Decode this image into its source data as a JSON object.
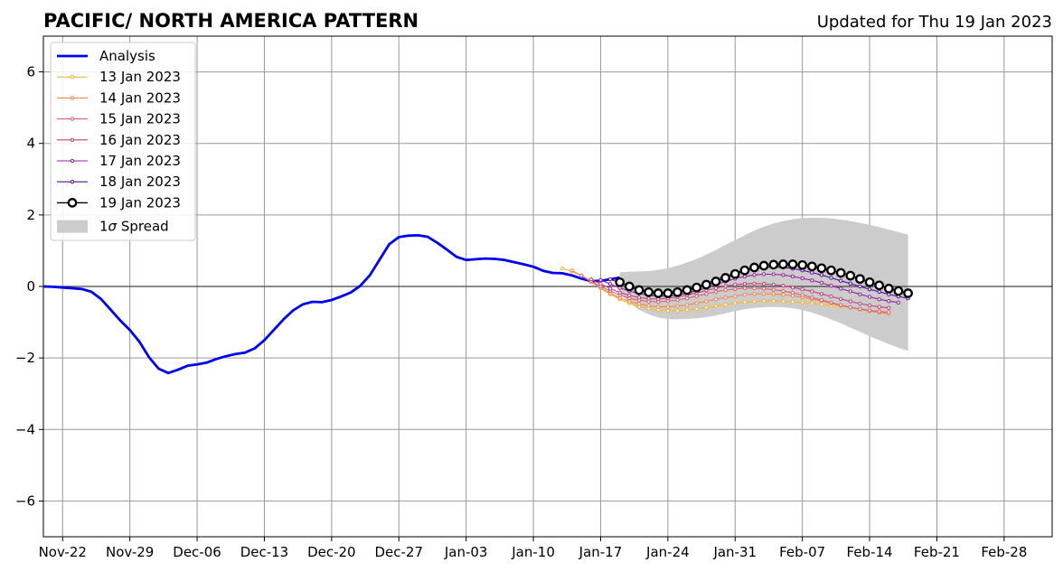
{
  "chart_data": {
    "type": "line",
    "title": "PACIFIC/ NORTH AMERICA PATTERN",
    "subtitle": "Updated for Thu 19 Jan 2023",
    "xlabel": "",
    "ylabel": "",
    "x_range": [
      "2022-11-20",
      "2023-03-05"
    ],
    "ylim": [
      -7,
      7
    ],
    "x_ticks": [
      {
        "date": "2022-11-22",
        "label": "Nov-22"
      },
      {
        "date": "2022-11-29",
        "label": "Nov-29"
      },
      {
        "date": "2022-12-06",
        "label": "Dec-06"
      },
      {
        "date": "2022-12-13",
        "label": "Dec-13"
      },
      {
        "date": "2022-12-20",
        "label": "Dec-20"
      },
      {
        "date": "2022-12-27",
        "label": "Dec-27"
      },
      {
        "date": "2023-01-03",
        "label": "Jan-03"
      },
      {
        "date": "2023-01-10",
        "label": "Jan-10"
      },
      {
        "date": "2023-01-17",
        "label": "Jan-17"
      },
      {
        "date": "2023-01-24",
        "label": "Jan-24"
      },
      {
        "date": "2023-01-31",
        "label": "Jan-31"
      },
      {
        "date": "2023-02-07",
        "label": "Feb-07"
      },
      {
        "date": "2023-02-14",
        "label": "Feb-14"
      },
      {
        "date": "2023-02-21",
        "label": "Feb-21"
      },
      {
        "date": "2023-02-28",
        "label": "Feb-28"
      }
    ],
    "y_ticks": [
      {
        "value": -6,
        "label": "−6"
      },
      {
        "value": -4,
        "label": "−4"
      },
      {
        "value": -2,
        "label": "−2"
      },
      {
        "value": 0,
        "label": "0"
      },
      {
        "value": 2,
        "label": "2"
      },
      {
        "value": 4,
        "label": "4"
      },
      {
        "value": 6,
        "label": "6"
      }
    ],
    "grid": true,
    "legend_position": "top-left",
    "colors": {
      "analysis": "#0000ee",
      "spread": "#cccccc",
      "grid": "#999999",
      "zero_line": "#444444"
    },
    "analysis": {
      "name": "Analysis",
      "start_date": "2022-11-20",
      "values": [
        0.0,
        -0.01,
        -0.03,
        -0.05,
        -0.07,
        -0.15,
        -0.35,
        -0.65,
        -0.95,
        -1.22,
        -1.55,
        -1.98,
        -2.3,
        -2.42,
        -2.33,
        -2.22,
        -2.18,
        -2.13,
        -2.03,
        -1.95,
        -1.89,
        -1.85,
        -1.73,
        -1.5,
        -1.21,
        -0.92,
        -0.67,
        -0.5,
        -0.43,
        -0.44,
        -0.38,
        -0.28,
        -0.17,
        0.02,
        0.32,
        0.75,
        1.18,
        1.38,
        1.42,
        1.43,
        1.39,
        1.22,
        1.03,
        0.83,
        0.74,
        0.76,
        0.78,
        0.77,
        0.74,
        0.68,
        0.62,
        0.55,
        0.44,
        0.38,
        0.37,
        0.31,
        0.22,
        0.15,
        0.16,
        0.2,
        0.25
      ]
    },
    "forecasts": [
      {
        "name": "13 Jan 2023",
        "color": "#f7b733",
        "start_date": "2023-01-13",
        "values": [
          0.5,
          0.42,
          0.3,
          0.15,
          -0.05,
          -0.22,
          -0.36,
          -0.47,
          -0.56,
          -0.62,
          -0.66,
          -0.68,
          -0.68,
          -0.66,
          -0.63,
          -0.59,
          -0.55,
          -0.51,
          -0.47,
          -0.44,
          -0.42,
          -0.41,
          -0.41,
          -0.42,
          -0.43,
          -0.45,
          -0.47,
          -0.5,
          -0.53,
          -0.56,
          -0.59,
          -0.63,
          -0.67,
          -0.71,
          -0.76
        ]
      },
      {
        "name": "14 Jan 2023",
        "color": "#f08a4b",
        "start_date": "2023-01-14",
        "values": [
          0.45,
          0.3,
          0.13,
          -0.04,
          -0.19,
          -0.32,
          -0.42,
          -0.49,
          -0.54,
          -0.57,
          -0.57,
          -0.55,
          -0.52,
          -0.47,
          -0.42,
          -0.36,
          -0.31,
          -0.27,
          -0.23,
          -0.21,
          -0.2,
          -0.21,
          -0.23,
          -0.26,
          -0.3,
          -0.35,
          -0.41,
          -0.47,
          -0.53,
          -0.59,
          -0.64,
          -0.69,
          -0.73,
          -0.76
        ]
      },
      {
        "name": "15 Jan 2023",
        "color": "#e06070",
        "start_date": "2023-01-15",
        "values": [
          0.3,
          0.15,
          0.0,
          -0.13,
          -0.24,
          -0.33,
          -0.39,
          -0.42,
          -0.43,
          -0.41,
          -0.38,
          -0.33,
          -0.27,
          -0.21,
          -0.15,
          -0.1,
          -0.07,
          -0.05,
          -0.05,
          -0.06,
          -0.09,
          -0.13,
          -0.18,
          -0.24,
          -0.31,
          -0.38,
          -0.45,
          -0.52,
          -0.58,
          -0.63,
          -0.67,
          -0.7,
          -0.72
        ]
      },
      {
        "name": "16 Jan 2023",
        "color": "#c0407f",
        "start_date": "2023-01-16",
        "values": [
          0.2,
          0.07,
          -0.06,
          -0.17,
          -0.25,
          -0.31,
          -0.34,
          -0.35,
          -0.33,
          -0.29,
          -0.24,
          -0.18,
          -0.11,
          -0.05,
          0.01,
          0.05,
          0.07,
          0.08,
          0.07,
          0.05,
          0.02,
          -0.03,
          -0.08,
          -0.14,
          -0.21,
          -0.28,
          -0.35,
          -0.42,
          -0.48,
          -0.53,
          -0.57,
          -0.6
        ]
      },
      {
        "name": "17 Jan 2023",
        "color": "#9a1fa3",
        "start_date": "2023-01-17",
        "values": [
          0.18,
          0.07,
          -0.04,
          -0.13,
          -0.2,
          -0.25,
          -0.27,
          -0.27,
          -0.24,
          -0.19,
          -0.12,
          -0.04,
          0.05,
          0.14,
          0.22,
          0.28,
          0.32,
          0.34,
          0.34,
          0.32,
          0.28,
          0.23,
          0.17,
          0.1,
          0.02,
          -0.06,
          -0.14,
          -0.22,
          -0.29,
          -0.36,
          -0.41,
          -0.45
        ]
      },
      {
        "name": "18 Jan 2023",
        "color": "#5a0f9e",
        "start_date": "2023-01-18",
        "values": [
          0.2,
          0.1,
          0.0,
          -0.08,
          -0.14,
          -0.17,
          -0.17,
          -0.14,
          -0.08,
          0.0,
          0.09,
          0.19,
          0.29,
          0.38,
          0.45,
          0.5,
          0.53,
          0.54,
          0.53,
          0.5,
          0.45,
          0.39,
          0.32,
          0.24,
          0.16,
          0.08,
          0.0,
          -0.08,
          -0.15,
          -0.22,
          -0.28,
          -0.33
        ]
      },
      {
        "name": "19 Jan 2023",
        "color": "#000000",
        "marker": "open-circle",
        "start_date": "2023-01-19",
        "values": [
          0.12,
          0.0,
          -0.1,
          -0.16,
          -0.19,
          -0.19,
          -0.16,
          -0.1,
          -0.03,
          0.05,
          0.14,
          0.24,
          0.35,
          0.45,
          0.53,
          0.58,
          0.61,
          0.62,
          0.62,
          0.6,
          0.56,
          0.51,
          0.45,
          0.38,
          0.3,
          0.21,
          0.12,
          0.03,
          -0.06,
          -0.13,
          -0.19
        ]
      }
    ],
    "spread": {
      "name": "1σ Spread",
      "label_prefix": "1",
      "label_sigma": "σ",
      "label_suffix": " Spread",
      "start_date": "2023-01-19",
      "upper": [
        0.4,
        0.41,
        0.42,
        0.43,
        0.46,
        0.51,
        0.58,
        0.67,
        0.77,
        0.89,
        1.02,
        1.16,
        1.3,
        1.43,
        1.56,
        1.67,
        1.76,
        1.83,
        1.88,
        1.91,
        1.92,
        1.92,
        1.9,
        1.87,
        1.83,
        1.78,
        1.72,
        1.66,
        1.59,
        1.52,
        1.45
      ],
      "lower": [
        -0.2,
        -0.45,
        -0.65,
        -0.78,
        -0.87,
        -0.91,
        -0.92,
        -0.91,
        -0.89,
        -0.86,
        -0.81,
        -0.75,
        -0.69,
        -0.64,
        -0.6,
        -0.58,
        -0.57,
        -0.58,
        -0.61,
        -0.66,
        -0.73,
        -0.82,
        -0.92,
        -1.03,
        -1.15,
        -1.27,
        -1.39,
        -1.5,
        -1.61,
        -1.71,
        -1.8
      ]
    }
  }
}
